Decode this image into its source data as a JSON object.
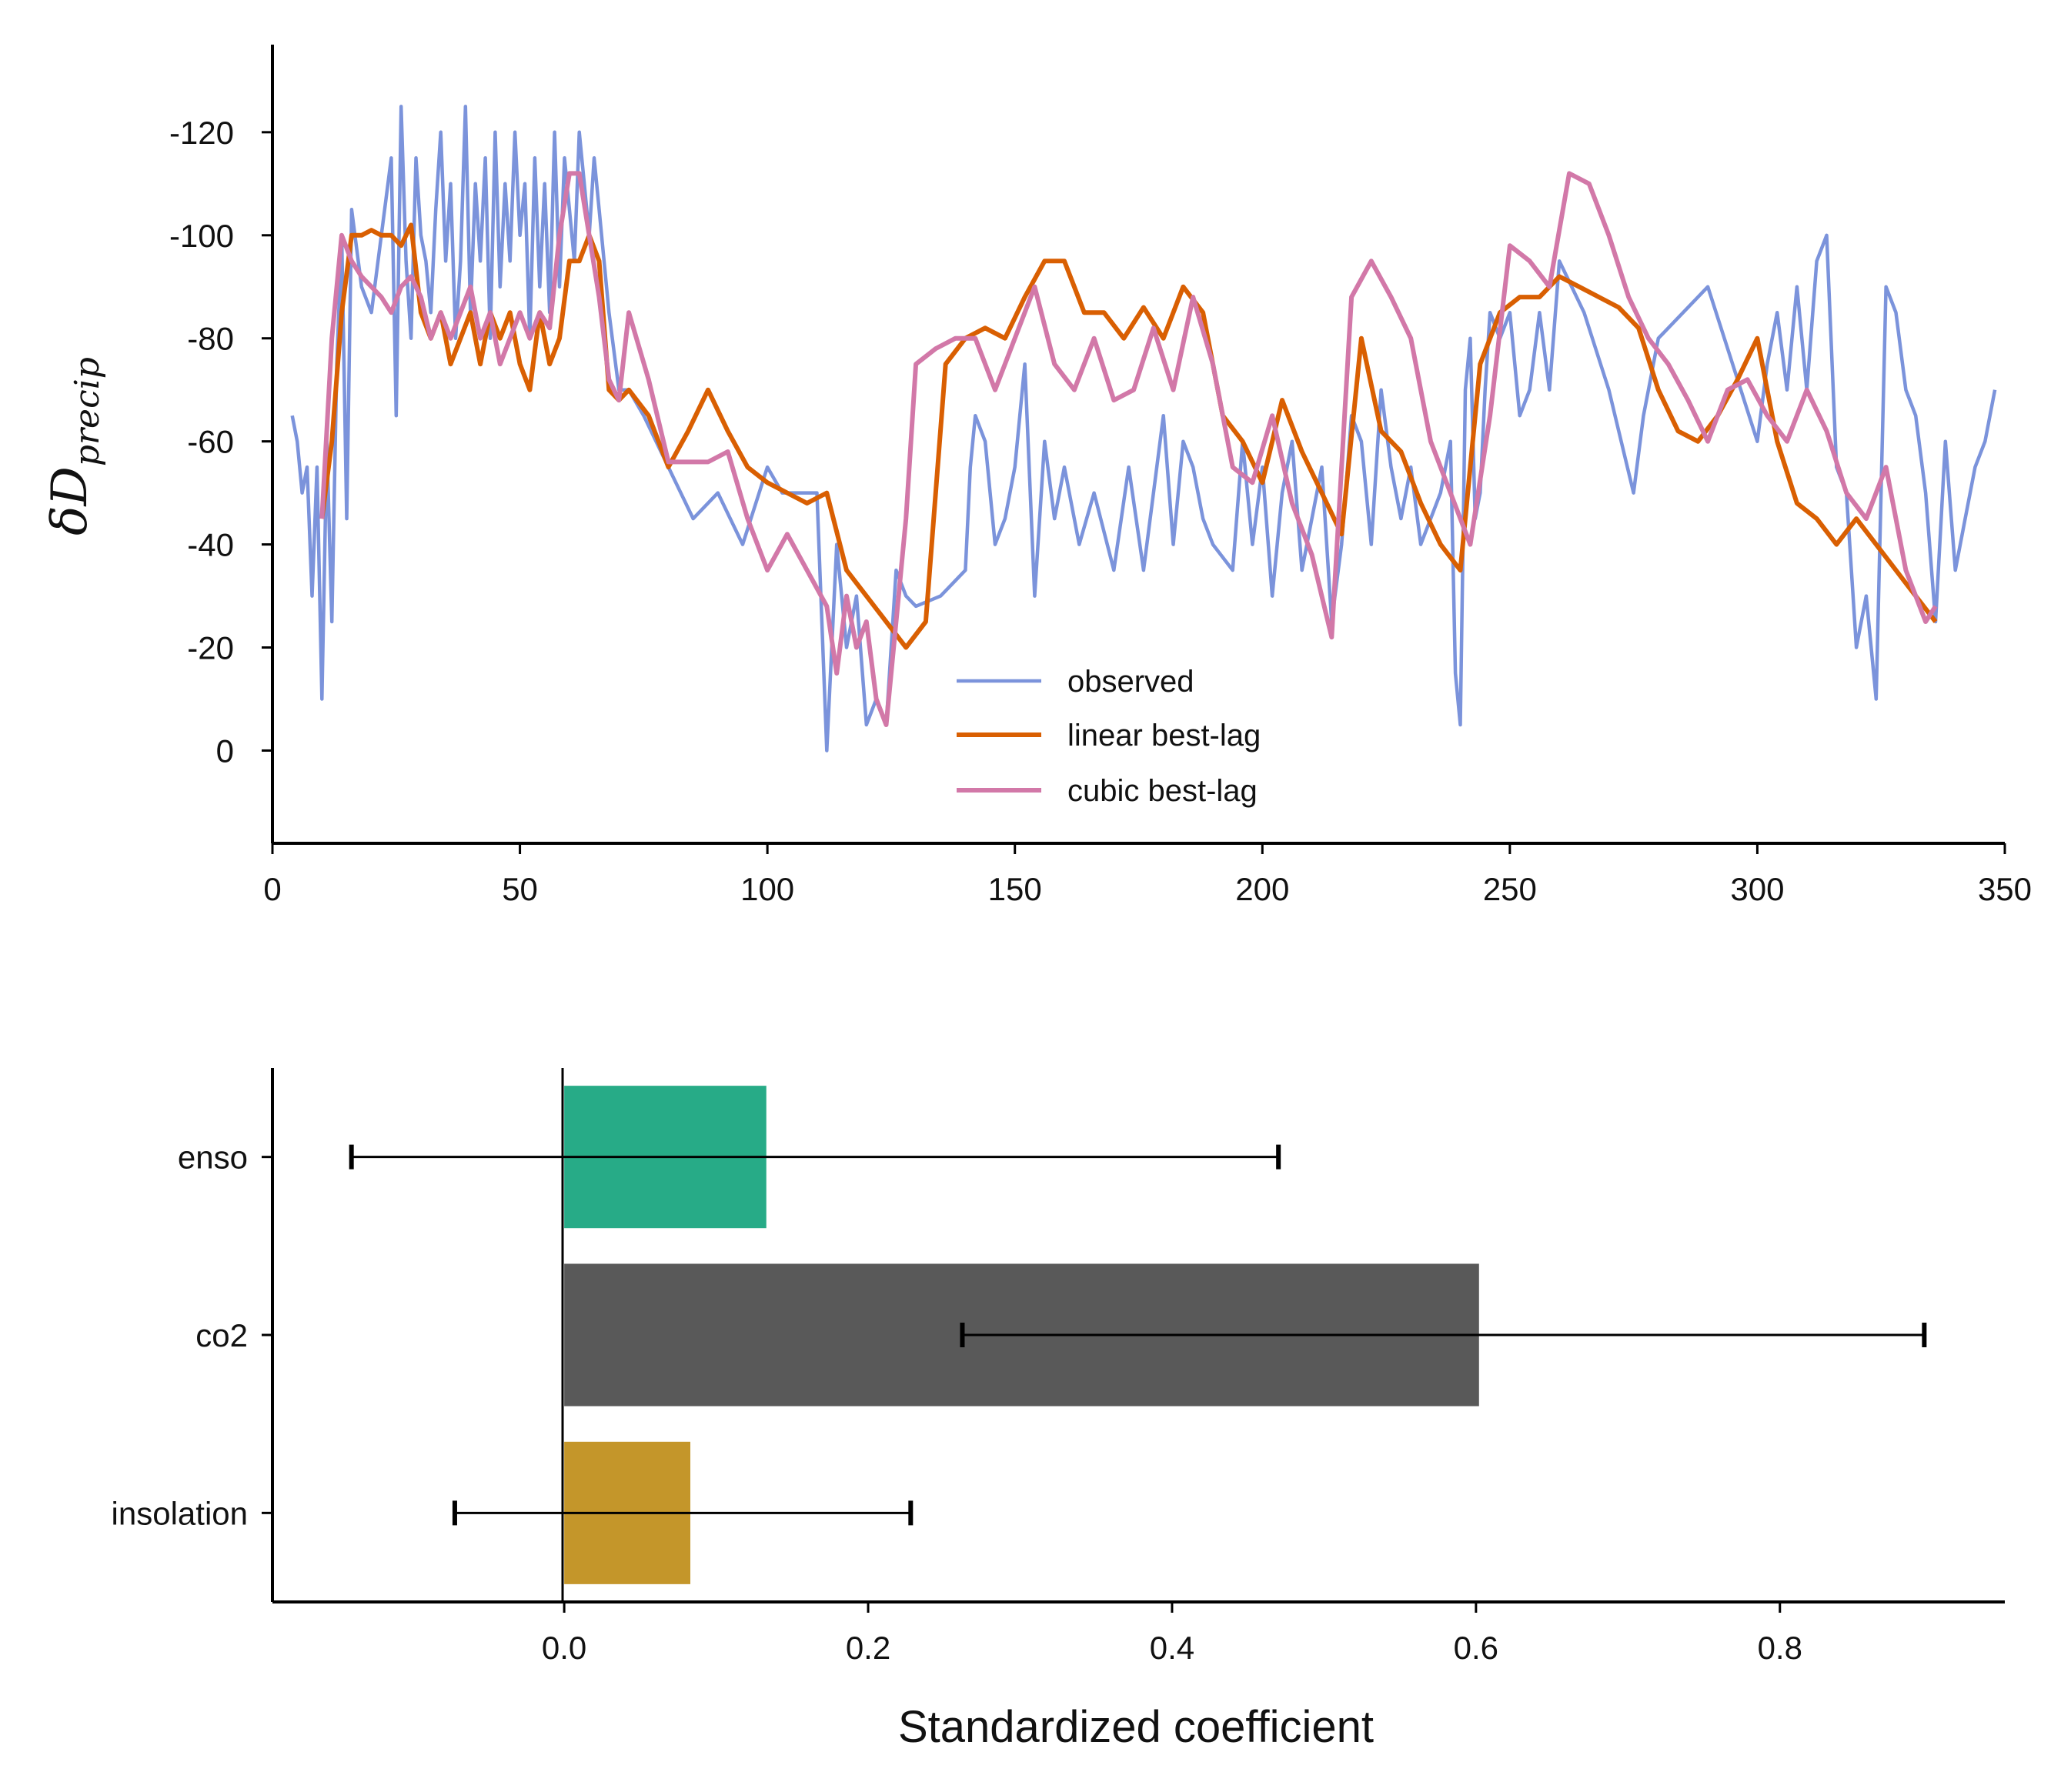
{
  "chart_data": [
    {
      "type": "line",
      "ylabel": "δD",
      "ylabel_sub": "precip",
      "xlim": [
        0,
        350
      ],
      "ylim": [
        18,
        -137
      ],
      "y_inverted": true,
      "x_ticks": [
        0,
        50,
        100,
        150,
        200,
        250,
        300,
        350
      ],
      "y_ticks": [
        0,
        -20,
        -40,
        -60,
        -80,
        -100,
        -120
      ],
      "y_tick_labels": [
        "0",
        "-20",
        "-40",
        "-60",
        "-80",
        "-100",
        "-120"
      ],
      "legend_position": "lower-center",
      "series": [
        {
          "name": "observed",
          "color": "#7b93db",
          "x": [
            4,
            5,
            6,
            7,
            8,
            9,
            10,
            11,
            12,
            13,
            14,
            15,
            16,
            18,
            20,
            22,
            24,
            25,
            26,
            27,
            28,
            29,
            30,
            31,
            32,
            33,
            34,
            35,
            36,
            37,
            38,
            39,
            40,
            41,
            42,
            43,
            44,
            45,
            46,
            47,
            48,
            49,
            50,
            51,
            52,
            53,
            54,
            55,
            56,
            57,
            58,
            59,
            60,
            61,
            62,
            63,
            64,
            65,
            66,
            67,
            68,
            70,
            72,
            75,
            80,
            85,
            90,
            95,
            100,
            103,
            106,
            110,
            112,
            114,
            116,
            118,
            120,
            122,
            124,
            126,
            128,
            130,
            135,
            140,
            141,
            142,
            144,
            146,
            148,
            150,
            152,
            154,
            156,
            158,
            160,
            163,
            166,
            170,
            173,
            176,
            180,
            182,
            184,
            186,
            188,
            190,
            194,
            196,
            198,
            200,
            202,
            204,
            206,
            208,
            210,
            212,
            214,
            216,
            218,
            220,
            222,
            224,
            226,
            228,
            230,
            232,
            234,
            236,
            238,
            239,
            240,
            241,
            242,
            243,
            244,
            245,
            246,
            248,
            250,
            252,
            254,
            256,
            258,
            260,
            265,
            270,
            275,
            277,
            280,
            285,
            290,
            295,
            300,
            302,
            304,
            306,
            308,
            310,
            312,
            314,
            316,
            318,
            320,
            322,
            324,
            326,
            328,
            330,
            332,
            334,
            336,
            338,
            340,
            342,
            344,
            346,
            348
          ],
          "y": [
            -65,
            -60,
            -50,
            -55,
            -30,
            -55,
            -10,
            -60,
            -25,
            -75,
            -100,
            -45,
            -105,
            -90,
            -85,
            -100,
            -115,
            -65,
            -125,
            -95,
            -80,
            -115,
            -100,
            -95,
            -85,
            -105,
            -120,
            -95,
            -110,
            -80,
            -95,
            -125,
            -85,
            -110,
            -95,
            -115,
            -80,
            -120,
            -90,
            -110,
            -95,
            -120,
            -100,
            -110,
            -80,
            -115,
            -90,
            -110,
            -85,
            -120,
            -90,
            -115,
            -105,
            -95,
            -120,
            -110,
            -100,
            -115,
            -105,
            -95,
            -85,
            -70,
            -70,
            -65,
            -55,
            -45,
            -50,
            -40,
            -55,
            -50,
            -50,
            -50,
            0,
            -40,
            -20,
            -30,
            -5,
            -10,
            -5,
            -35,
            -30,
            -28,
            -30,
            -35,
            -55,
            -65,
            -60,
            -40,
            -45,
            -55,
            -75,
            -30,
            -60,
            -45,
            -55,
            -40,
            -50,
            -35,
            -55,
            -35,
            -65,
            -40,
            -60,
            -55,
            -45,
            -40,
            -35,
            -60,
            -40,
            -55,
            -30,
            -50,
            -60,
            -35,
            -45,
            -55,
            -25,
            -40,
            -65,
            -60,
            -40,
            -70,
            -55,
            -45,
            -55,
            -40,
            -45,
            -50,
            -60,
            -15,
            -5,
            -70,
            -80,
            -45,
            -50,
            -70,
            -85,
            -80,
            -85,
            -65,
            -70,
            -85,
            -70,
            -95,
            -85,
            -70,
            -50,
            -65,
            -80,
            -85,
            -90,
            -75,
            -60,
            -75,
            -85,
            -70,
            -90,
            -70,
            -95,
            -100,
            -55,
            -50,
            -20,
            -30,
            -10,
            -90,
            -85,
            -70,
            -65,
            -50,
            -25,
            -60,
            -35,
            -45,
            -55,
            -60,
            -70
          ],
          "width": 4.5
        },
        {
          "name": "linear best-lag",
          "color": "#d95f02",
          "x": [
            10,
            12,
            14,
            16,
            18,
            20,
            22,
            24,
            26,
            28,
            30,
            32,
            34,
            36,
            38,
            40,
            42,
            44,
            46,
            48,
            50,
            52,
            54,
            56,
            58,
            60,
            62,
            64,
            66,
            68,
            70,
            72,
            76,
            80,
            84,
            88,
            92,
            96,
            100,
            104,
            108,
            112,
            116,
            120,
            124,
            128,
            132,
            136,
            140,
            144,
            148,
            152,
            156,
            160,
            164,
            168,
            172,
            176,
            180,
            184,
            188,
            192,
            196,
            200,
            204,
            208,
            212,
            216,
            220,
            224,
            228,
            232,
            236,
            240,
            242,
            244,
            248,
            252,
            256,
            260,
            264,
            268,
            272,
            276,
            280,
            284,
            288,
            292,
            296,
            300,
            304,
            308,
            312,
            316,
            320,
            324,
            328,
            332,
            336
          ],
          "y": [
            -45,
            -60,
            -85,
            -100,
            -100,
            -101,
            -100,
            -100,
            -98,
            -102,
            -85,
            -80,
            -85,
            -75,
            -80,
            -85,
            -75,
            -85,
            -80,
            -85,
            -75,
            -70,
            -85,
            -75,
            -80,
            -95,
            -95,
            -100,
            -95,
            -70,
            -68,
            -70,
            -65,
            -55,
            -62,
            -70,
            -62,
            -55,
            -52,
            -50,
            -48,
            -50,
            -35,
            -30,
            -25,
            -20,
            -25,
            -75,
            -80,
            -82,
            -80,
            -88,
            -95,
            -95,
            -85,
            -85,
            -80,
            -86,
            -80,
            -90,
            -85,
            -65,
            -60,
            -52,
            -68,
            -58,
            -50,
            -42,
            -80,
            -62,
            -58,
            -48,
            -40,
            -35,
            -55,
            -75,
            -85,
            -88,
            -88,
            -92,
            -90,
            -88,
            -86,
            -82,
            -70,
            -62,
            -60,
            -65,
            -72,
            -80,
            -60,
            -48,
            -45,
            -40,
            -45,
            -40,
            -35,
            -30,
            -25
          ],
          "width": 6
        },
        {
          "name": "cubic best-lag",
          "color": "#d278a8",
          "x": [
            10,
            12,
            14,
            16,
            18,
            20,
            22,
            24,
            26,
            28,
            30,
            32,
            34,
            36,
            38,
            40,
            42,
            44,
            46,
            48,
            50,
            52,
            54,
            56,
            58,
            60,
            62,
            64,
            66,
            68,
            70,
            72,
            76,
            80,
            84,
            88,
            92,
            96,
            100,
            104,
            108,
            112,
            114,
            116,
            118,
            120,
            122,
            124,
            126,
            128,
            130,
            134,
            138,
            142,
            146,
            150,
            154,
            158,
            162,
            166,
            170,
            174,
            178,
            182,
            186,
            190,
            194,
            198,
            202,
            206,
            210,
            214,
            218,
            222,
            226,
            230,
            234,
            238,
            242,
            246,
            250,
            254,
            258,
            262,
            266,
            270,
            274,
            278,
            282,
            286,
            290,
            294,
            298,
            302,
            306,
            310,
            314,
            318,
            322,
            326,
            330,
            334,
            336
          ],
          "y": [
            -45,
            -80,
            -100,
            -95,
            -92,
            -90,
            -88,
            -85,
            -90,
            -92,
            -88,
            -80,
            -85,
            -80,
            -85,
            -90,
            -80,
            -85,
            -75,
            -80,
            -85,
            -80,
            -85,
            -82,
            -100,
            -112,
            -112,
            -100,
            -88,
            -72,
            -68,
            -85,
            -72,
            -56,
            -56,
            -56,
            -58,
            -45,
            -35,
            -42,
            -35,
            -28,
            -15,
            -30,
            -20,
            -25,
            -10,
            -5,
            -25,
            -45,
            -75,
            -78,
            -80,
            -80,
            -70,
            -80,
            -90,
            -75,
            -70,
            -80,
            -68,
            -70,
            -82,
            -70,
            -88,
            -75,
            -55,
            -52,
            -65,
            -48,
            -38,
            -22,
            -88,
            -95,
            -88,
            -80,
            -60,
            -50,
            -40,
            -65,
            -98,
            -95,
            -90,
            -112,
            -110,
            -100,
            -88,
            -80,
            -75,
            -68,
            -60,
            -70,
            -72,
            -65,
            -60,
            -70,
            -62,
            -50,
            -45,
            -55,
            -35,
            -25,
            -28
          ],
          "width": 6
        }
      ]
    },
    {
      "type": "bar",
      "orientation": "horizontal",
      "categories": [
        "enso",
        "co2",
        "insolation"
      ],
      "values": [
        0.133,
        0.602,
        0.083
      ],
      "error_low": [
        -0.14,
        0.262,
        -0.072
      ],
      "error_high": [
        0.47,
        0.895,
        0.228
      ],
      "colors": [
        "#27ab87",
        "#595959",
        "#c4962a"
      ],
      "xlabel": "Standardized coefficient",
      "xlim": [
        -0.192,
        0.948
      ],
      "x_ticks": [
        0.0,
        0.2,
        0.4,
        0.6,
        0.8
      ],
      "x_tick_labels": [
        "0.0",
        "0.2",
        "0.4",
        "0.6",
        "0.8"
      ]
    }
  ]
}
